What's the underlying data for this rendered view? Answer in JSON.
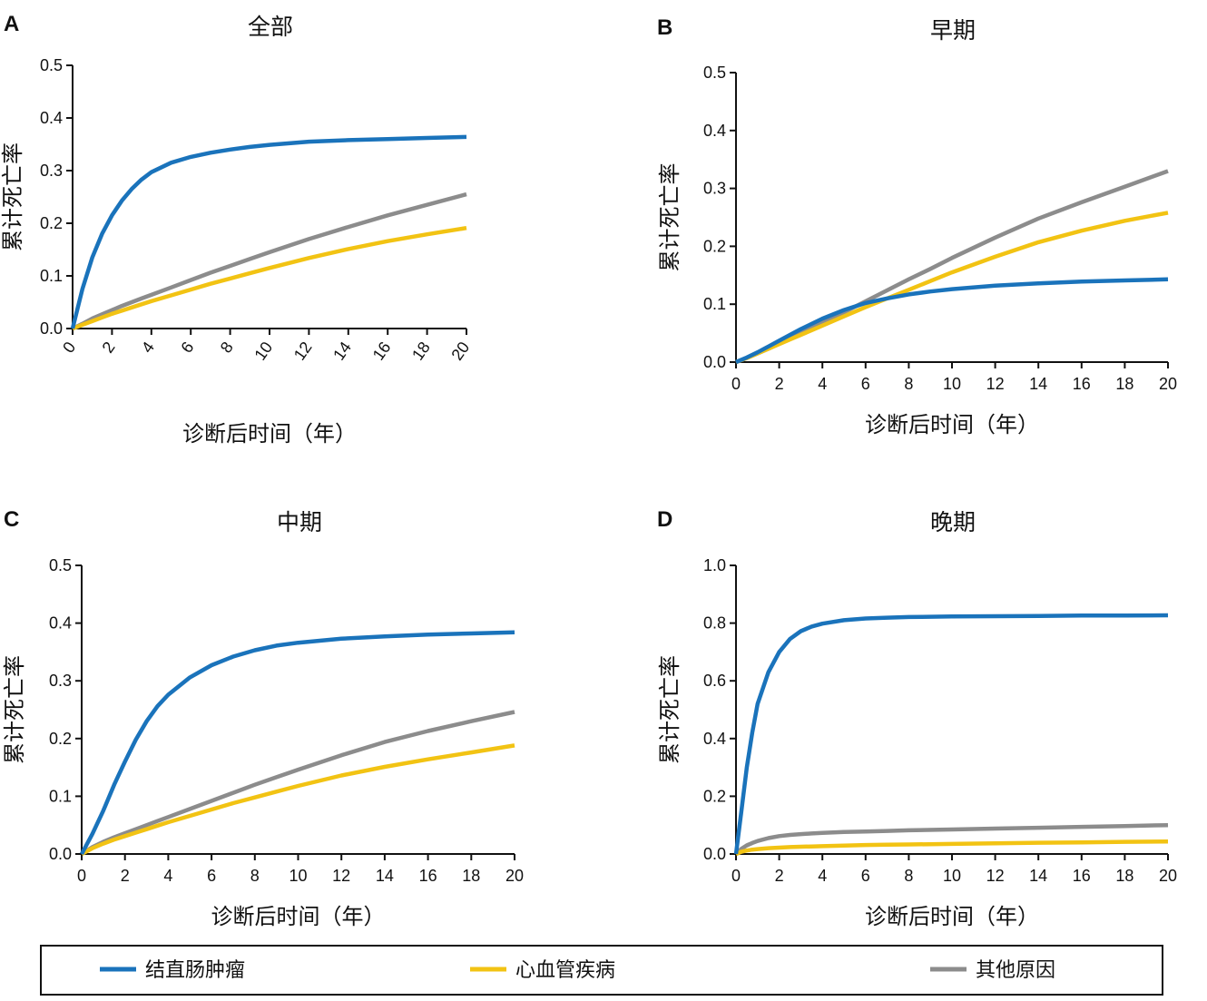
{
  "colors": {
    "crc": "#1A73BB",
    "cvd": "#F2C313",
    "other": "#8C8C8C",
    "axis": "#111111"
  },
  "legend": [
    {
      "key": "crc",
      "label": "结直肠肿瘤"
    },
    {
      "key": "cvd",
      "label": "心血管疾病"
    },
    {
      "key": "other",
      "label": "其他原因"
    }
  ],
  "chart_data": [
    {
      "panel": "A",
      "title": "全部",
      "type": "line",
      "xlabel": "诊断后时间（年）",
      "ylabel": "累计死亡率",
      "xlim": [
        0,
        20
      ],
      "ylim": [
        0,
        0.5
      ],
      "xticks": [
        0,
        2,
        4,
        6,
        8,
        10,
        12,
        14,
        16,
        18,
        20
      ],
      "yticks": [
        0.0,
        0.1,
        0.2,
        0.3,
        0.4,
        0.5
      ],
      "ytick_decimals": 1,
      "xtick_rotated": true,
      "x": [
        0,
        0.5,
        1,
        1.5,
        2,
        2.5,
        3,
        3.5,
        4,
        5,
        6,
        7,
        8,
        9,
        10,
        12,
        14,
        16,
        18,
        20
      ],
      "series": [
        {
          "key": "crc",
          "name": "结直肠肿瘤",
          "values": [
            0,
            0.075,
            0.135,
            0.18,
            0.215,
            0.243,
            0.265,
            0.283,
            0.297,
            0.315,
            0.326,
            0.334,
            0.34,
            0.345,
            0.349,
            0.355,
            0.358,
            0.36,
            0.362,
            0.364
          ]
        },
        {
          "key": "cvd",
          "name": "心血管疾病",
          "values": [
            0,
            0.007,
            0.014,
            0.021,
            0.028,
            0.034,
            0.04,
            0.046,
            0.052,
            0.063,
            0.074,
            0.085,
            0.095,
            0.105,
            0.115,
            0.134,
            0.151,
            0.166,
            0.179,
            0.191
          ]
        },
        {
          "key": "other",
          "name": "其他原因",
          "values": [
            0,
            0.009,
            0.019,
            0.027,
            0.035,
            0.043,
            0.05,
            0.057,
            0.064,
            0.078,
            0.092,
            0.106,
            0.119,
            0.132,
            0.145,
            0.17,
            0.193,
            0.215,
            0.235,
            0.255
          ]
        }
      ]
    },
    {
      "panel": "B",
      "title": "早期",
      "type": "line",
      "xlabel": "诊断后时间（年）",
      "ylabel": "累计死亡率",
      "xlim": [
        0,
        20
      ],
      "ylim": [
        0,
        0.5
      ],
      "xticks": [
        0,
        2,
        4,
        6,
        8,
        10,
        12,
        14,
        16,
        18,
        20
      ],
      "yticks": [
        0.0,
        0.1,
        0.2,
        0.3,
        0.4,
        0.5
      ],
      "ytick_decimals": 1,
      "xtick_rotated": false,
      "x": [
        0,
        0.5,
        1,
        1.5,
        2,
        2.5,
        3,
        3.5,
        4,
        5,
        6,
        7,
        8,
        9,
        10,
        12,
        14,
        16,
        18,
        20
      ],
      "series": [
        {
          "key": "crc",
          "name": "结直肠肿瘤",
          "values": [
            0,
            0.008,
            0.017,
            0.027,
            0.037,
            0.047,
            0.057,
            0.066,
            0.075,
            0.09,
            0.102,
            0.11,
            0.117,
            0.122,
            0.126,
            0.132,
            0.136,
            0.139,
            0.141,
            0.143
          ]
        },
        {
          "key": "cvd",
          "name": "心血管疾病",
          "values": [
            0,
            0.007,
            0.015,
            0.023,
            0.031,
            0.039,
            0.047,
            0.055,
            0.063,
            0.079,
            0.095,
            0.11,
            0.125,
            0.14,
            0.155,
            0.182,
            0.207,
            0.227,
            0.244,
            0.258
          ]
        },
        {
          "key": "other",
          "name": "其他原因",
          "values": [
            0,
            0.007,
            0.015,
            0.023,
            0.032,
            0.041,
            0.05,
            0.059,
            0.068,
            0.086,
            0.105,
            0.124,
            0.143,
            0.161,
            0.18,
            0.215,
            0.248,
            0.276,
            0.303,
            0.33
          ]
        }
      ]
    },
    {
      "panel": "C",
      "title": "中期",
      "type": "line",
      "xlabel": "诊断后时间（年）",
      "ylabel": "累计死亡率",
      "xlim": [
        0,
        20
      ],
      "ylim": [
        0,
        0.5
      ],
      "xticks": [
        0,
        2,
        4,
        6,
        8,
        10,
        12,
        14,
        16,
        18,
        20
      ],
      "yticks": [
        0.0,
        0.1,
        0.2,
        0.3,
        0.4,
        0.5
      ],
      "ytick_decimals": 1,
      "xtick_rotated": false,
      "x": [
        0,
        0.5,
        1,
        1.5,
        2,
        2.5,
        3,
        3.5,
        4,
        5,
        6,
        7,
        8,
        9,
        10,
        12,
        14,
        16,
        18,
        20
      ],
      "series": [
        {
          "key": "crc",
          "name": "结直肠肿瘤",
          "values": [
            0,
            0.035,
            0.075,
            0.12,
            0.16,
            0.198,
            0.23,
            0.256,
            0.276,
            0.306,
            0.327,
            0.342,
            0.353,
            0.361,
            0.366,
            0.373,
            0.377,
            0.38,
            0.382,
            0.384
          ]
        },
        {
          "key": "cvd",
          "name": "心血管疾病",
          "values": [
            0,
            0.01,
            0.018,
            0.025,
            0.031,
            0.037,
            0.043,
            0.049,
            0.055,
            0.066,
            0.077,
            0.088,
            0.098,
            0.108,
            0.118,
            0.136,
            0.151,
            0.164,
            0.176,
            0.188
          ]
        },
        {
          "key": "other",
          "name": "其他原因",
          "values": [
            0,
            0.012,
            0.021,
            0.029,
            0.036,
            0.043,
            0.05,
            0.057,
            0.064,
            0.078,
            0.092,
            0.106,
            0.12,
            0.133,
            0.146,
            0.171,
            0.194,
            0.213,
            0.23,
            0.246
          ]
        }
      ]
    },
    {
      "panel": "D",
      "title": "晚期",
      "type": "line",
      "xlabel": "诊断后时间（年）",
      "ylabel": "累计死亡率",
      "xlim": [
        0,
        20
      ],
      "ylim": [
        0,
        1.0
      ],
      "xticks": [
        0,
        2,
        4,
        6,
        8,
        10,
        12,
        14,
        16,
        18,
        20
      ],
      "yticks": [
        0.0,
        0.2,
        0.4,
        0.6,
        0.8,
        1.0
      ],
      "ytick_decimals": 1,
      "xtick_rotated": false,
      "x": [
        0,
        0.25,
        0.5,
        0.75,
        1,
        1.5,
        2,
        2.5,
        3,
        3.5,
        4,
        5,
        6,
        7,
        8,
        10,
        12,
        14,
        16,
        18,
        20
      ],
      "series": [
        {
          "key": "crc",
          "name": "结直肠肿瘤",
          "values": [
            0,
            0.15,
            0.3,
            0.42,
            0.52,
            0.63,
            0.7,
            0.745,
            0.772,
            0.788,
            0.798,
            0.81,
            0.816,
            0.819,
            0.821,
            0.823,
            0.824,
            0.825,
            0.826,
            0.826,
            0.827
          ]
        },
        {
          "key": "cvd",
          "name": "心血管疾病",
          "values": [
            0,
            0.008,
            0.012,
            0.015,
            0.017,
            0.02,
            0.022,
            0.024,
            0.025,
            0.026,
            0.027,
            0.029,
            0.031,
            0.032,
            0.033,
            0.035,
            0.037,
            0.039,
            0.04,
            0.042,
            0.043
          ]
        },
        {
          "key": "other",
          "name": "其他原因",
          "values": [
            0,
            0.018,
            0.03,
            0.038,
            0.045,
            0.055,
            0.062,
            0.066,
            0.069,
            0.071,
            0.073,
            0.076,
            0.078,
            0.08,
            0.082,
            0.085,
            0.088,
            0.091,
            0.094,
            0.097,
            0.1
          ]
        }
      ]
    }
  ]
}
